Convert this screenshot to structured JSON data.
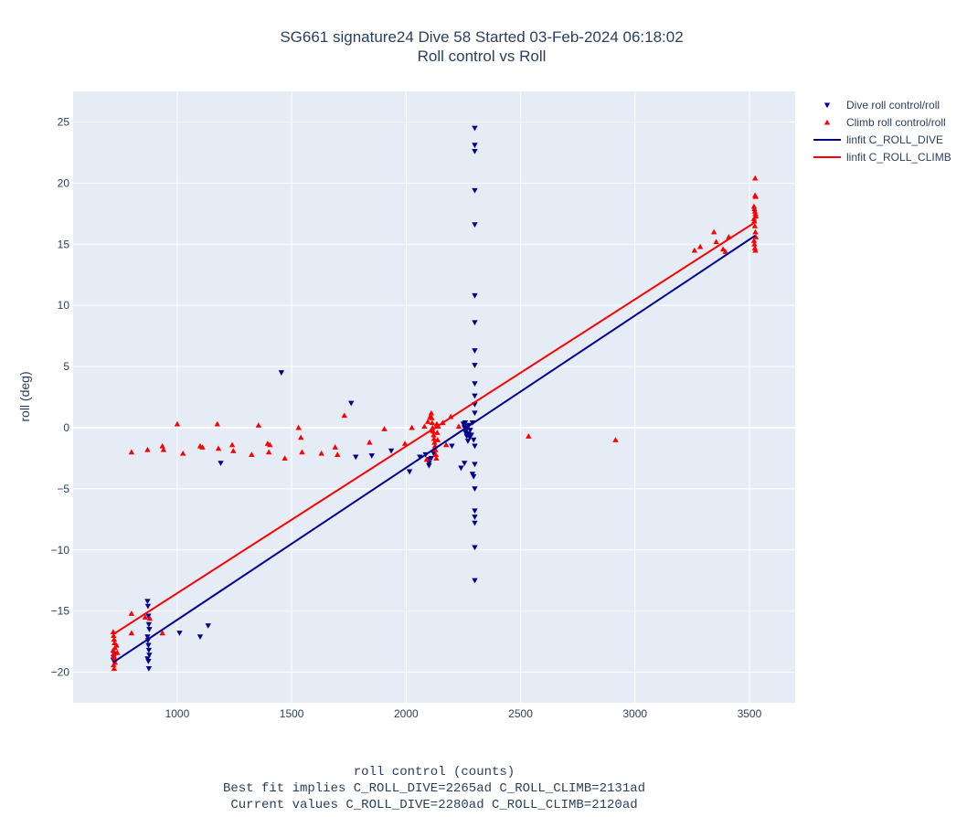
{
  "chart_data": {
    "type": "scatter",
    "title": "SG661 signature24 Dive 58 Started 03-Feb-2024 06:18:02",
    "subtitle": "Roll control vs Roll",
    "xlabel": "roll control (counts)",
    "xlabel_lines": [
      "Best fit implies C_ROLL_DIVE=2265ad C_ROLL_CLIMB=2131ad",
      "Current values C_ROLL_DIVE=2280ad C_ROLL_CLIMB=2120ad"
    ],
    "ylabel": "roll (deg)",
    "xlim": [
      545,
      3700
    ],
    "ylim": [
      -22.5,
      27.5
    ],
    "xticks": [
      1000,
      1500,
      2000,
      2500,
      3000,
      3500
    ],
    "yticks": [
      -20,
      -15,
      -10,
      -5,
      0,
      5,
      10,
      15,
      20,
      25
    ],
    "grid": true,
    "legend_position": "top-right",
    "colors": {
      "dive": "#00008b",
      "climb": "#ff0000",
      "plot_bg": "#e5ecf6",
      "grid": "#ffffff"
    },
    "series": [
      {
        "name": "Dive roll control/roll",
        "kind": "points",
        "marker": "triangle-down",
        "color": "#00008b",
        "points": [
          [
            720,
            -19.0
          ],
          [
            722,
            -18.8
          ],
          [
            724,
            -18.5
          ],
          [
            726,
            -19.2
          ],
          [
            870,
            -14.2
          ],
          [
            872,
            -14.6
          ],
          [
            874,
            -15.4
          ],
          [
            876,
            -16.1
          ],
          [
            878,
            -16.5
          ],
          [
            870,
            -17.1
          ],
          [
            872,
            -17.4
          ],
          [
            874,
            -17.8
          ],
          [
            876,
            -18.2
          ],
          [
            878,
            -18.6
          ],
          [
            870,
            -18.9
          ],
          [
            874,
            -19.1
          ],
          [
            876,
            -19.7
          ],
          [
            1010,
            -16.8
          ],
          [
            1100,
            -17.1
          ],
          [
            1135,
            -16.2
          ],
          [
            1190,
            -2.9
          ],
          [
            1455,
            4.5
          ],
          [
            1760,
            2.0
          ],
          [
            1780,
            -2.4
          ],
          [
            1850,
            -2.3
          ],
          [
            1935,
            -1.9
          ],
          [
            2015,
            -3.6
          ],
          [
            2060,
            -2.4
          ],
          [
            2085,
            -2.2
          ],
          [
            2100,
            -2.6
          ],
          [
            2100,
            -2.9
          ],
          [
            2100,
            -3.1
          ],
          [
            2110,
            -2.5
          ],
          [
            2120,
            -2.1
          ],
          [
            2200,
            -1.5
          ],
          [
            2240,
            -3.3
          ],
          [
            2255,
            -2.9
          ],
          [
            2250,
            0.3
          ],
          [
            2255,
            0.0
          ],
          [
            2260,
            -0.4
          ],
          [
            2265,
            -0.7
          ],
          [
            2270,
            -1.1
          ],
          [
            2275,
            0.2
          ],
          [
            2280,
            -0.2
          ],
          [
            2285,
            -0.6
          ],
          [
            2290,
            0.4
          ],
          [
            2295,
            -1.0
          ],
          [
            2258,
            0.4
          ],
          [
            2262,
            -0.2
          ],
          [
            2268,
            0.1
          ],
          [
            2272,
            -0.5
          ],
          [
            2278,
            -0.8
          ],
          [
            2300,
            24.5
          ],
          [
            2300,
            23.1
          ],
          [
            2300,
            22.6
          ],
          [
            2300,
            19.4
          ],
          [
            2300,
            16.6
          ],
          [
            2300,
            10.8
          ],
          [
            2300,
            8.6
          ],
          [
            2300,
            6.3
          ],
          [
            2300,
            5.1
          ],
          [
            2300,
            3.6
          ],
          [
            2300,
            2.6
          ],
          [
            2300,
            1.9
          ],
          [
            2300,
            1.2
          ],
          [
            2300,
            -1.5
          ],
          [
            2300,
            -3.0
          ],
          [
            2290,
            -3.8
          ],
          [
            2295,
            -4.0
          ],
          [
            2300,
            -5.0
          ],
          [
            2300,
            -6.8
          ],
          [
            2300,
            -7.3
          ],
          [
            2300,
            -7.8
          ],
          [
            2300,
            -9.8
          ],
          [
            2300,
            -12.5
          ]
        ]
      },
      {
        "name": "Climb roll control/roll",
        "kind": "points",
        "marker": "triangle-up",
        "color": "#ff0000",
        "points": [
          [
            720,
            -16.7
          ],
          [
            722,
            -17.0
          ],
          [
            724,
            -17.3
          ],
          [
            726,
            -17.6
          ],
          [
            728,
            -18.0
          ],
          [
            720,
            -18.2
          ],
          [
            722,
            -18.5
          ],
          [
            724,
            -18.7
          ],
          [
            726,
            -18.9
          ],
          [
            728,
            -19.2
          ],
          [
            722,
            -19.4
          ],
          [
            724,
            -19.7
          ],
          [
            735,
            -17.8
          ],
          [
            738,
            -18.4
          ],
          [
            800,
            -15.2
          ],
          [
            800,
            -16.8
          ],
          [
            860,
            -15.5
          ],
          [
            880,
            -15.6
          ],
          [
            935,
            -16.8
          ],
          [
            800,
            -2.0
          ],
          [
            870,
            -1.8
          ],
          [
            935,
            -1.5
          ],
          [
            940,
            -1.8
          ],
          [
            1000,
            0.3
          ],
          [
            1025,
            -2.1
          ],
          [
            1100,
            -1.5
          ],
          [
            1110,
            -1.6
          ],
          [
            1175,
            0.3
          ],
          [
            1180,
            -1.7
          ],
          [
            1240,
            -1.4
          ],
          [
            1245,
            -1.9
          ],
          [
            1325,
            -2.2
          ],
          [
            1355,
            0.2
          ],
          [
            1395,
            -1.3
          ],
          [
            1400,
            -2.0
          ],
          [
            1405,
            -1.4
          ],
          [
            1470,
            -2.5
          ],
          [
            1530,
            0.0
          ],
          [
            1540,
            -0.8
          ],
          [
            1545,
            -2.0
          ],
          [
            1630,
            -2.1
          ],
          [
            1690,
            -1.6
          ],
          [
            1700,
            -2.2
          ],
          [
            1730,
            1.0
          ],
          [
            1840,
            -1.2
          ],
          [
            1905,
            -0.1
          ],
          [
            1995,
            -1.3
          ],
          [
            2025,
            0.0
          ],
          [
            2080,
            0.1
          ],
          [
            2090,
            -2.6
          ],
          [
            2095,
            0.5
          ],
          [
            2110,
            -0.2
          ],
          [
            2105,
            0.9
          ],
          [
            2110,
            1.2
          ],
          [
            2112,
            0.8
          ],
          [
            2114,
            0.4
          ],
          [
            2116,
            0.0
          ],
          [
            2118,
            -0.3
          ],
          [
            2120,
            -0.6
          ],
          [
            2122,
            -0.9
          ],
          [
            2124,
            -1.2
          ],
          [
            2126,
            -1.5
          ],
          [
            2128,
            -1.8
          ],
          [
            2130,
            -2.2
          ],
          [
            2132,
            -2.5
          ],
          [
            2134,
            0.3
          ],
          [
            2136,
            -0.4
          ],
          [
            2138,
            -1.0
          ],
          [
            2140,
            0.1
          ],
          [
            2160,
            0.4
          ],
          [
            2175,
            -1.4
          ],
          [
            2195,
            0.9
          ],
          [
            2230,
            0.1
          ],
          [
            2535,
            -0.7
          ],
          [
            2915,
            -1.0
          ],
          [
            3260,
            14.5
          ],
          [
            3285,
            14.8
          ],
          [
            3345,
            16.0
          ],
          [
            3355,
            15.2
          ],
          [
            3385,
            14.6
          ],
          [
            3395,
            14.4
          ],
          [
            3410,
            15.6
          ],
          [
            3525,
            20.4
          ],
          [
            3525,
            19.0
          ],
          [
            3527,
            18.9
          ],
          [
            3520,
            18.1
          ],
          [
            3522,
            17.9
          ],
          [
            3524,
            17.7
          ],
          [
            3526,
            17.5
          ],
          [
            3528,
            17.3
          ],
          [
            3520,
            17.1
          ],
          [
            3522,
            16.9
          ],
          [
            3524,
            16.5
          ],
          [
            3526,
            16.0
          ],
          [
            3528,
            15.6
          ],
          [
            3520,
            15.3
          ],
          [
            3522,
            15.0
          ],
          [
            3524,
            14.7
          ],
          [
            3526,
            14.5
          ]
        ]
      },
      {
        "name": "linfit C_ROLL_DIVE",
        "kind": "line",
        "color": "#00008b",
        "points": [
          [
            720,
            -19.2
          ],
          [
            3525,
            15.7
          ]
        ]
      },
      {
        "name": "linfit C_ROLL_CLIMB",
        "kind": "line",
        "color": "#ff0000",
        "points": [
          [
            720,
            -16.9
          ],
          [
            3525,
            16.8
          ]
        ]
      }
    ]
  }
}
